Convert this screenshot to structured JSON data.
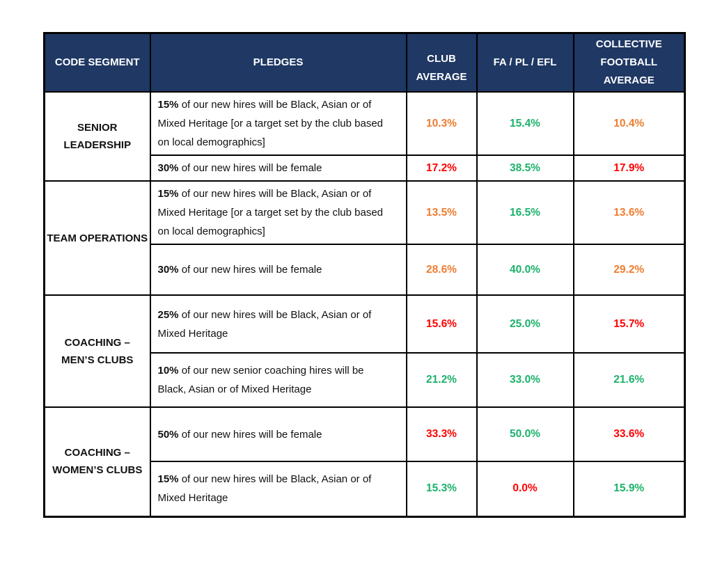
{
  "colors": {
    "header_bg": "#1F3864",
    "header_text": "#FFFFFF",
    "border": "#000000",
    "values": {
      "orange": "#ED7D31",
      "green": "#1CB26B",
      "red": "#FF0000"
    }
  },
  "table": {
    "headers": [
      "CODE SEGMENT",
      "PLEDGES",
      "CLUB AVERAGE",
      "FA / PL / EFL",
      "COLLECTIVE FOOTBALL AVERAGE"
    ],
    "segments": [
      {
        "name_lines": [
          "SENIOR",
          "LEADERSHIP"
        ],
        "rows": [
          {
            "pledge": {
              "target": "15%",
              "text": " of our new hires will be Black, Asian or of Mixed Heritage [or a target set by the club based on local demographics]"
            },
            "values": [
              {
                "value": "10.3%",
                "color": "orange"
              },
              {
                "value": "15.4%",
                "color": "green"
              },
              {
                "value": "10.4%",
                "color": "orange"
              }
            ]
          },
          {
            "pledge": {
              "target": "30%",
              "text": " of our new hires will be female"
            },
            "values": [
              {
                "value": "17.2%",
                "color": "red"
              },
              {
                "value": "38.5%",
                "color": "green"
              },
              {
                "value": "17.9%",
                "color": "red"
              }
            ]
          }
        ]
      },
      {
        "name_lines": [
          "TEAM OPERATIONS"
        ],
        "rows": [
          {
            "pledge": {
              "target": "15%",
              "text": " of our new hires will be Black, Asian or of Mixed Heritage [or a target set by the club based on local demographics]"
            },
            "values": [
              {
                "value": "13.5%",
                "color": "orange"
              },
              {
                "value": "16.5%",
                "color": "green"
              },
              {
                "value": "13.6%",
                "color": "orange"
              }
            ]
          },
          {
            "pledge": {
              "target": "30%",
              "text": " of our new hires will be female"
            },
            "values": [
              {
                "value": "28.6%",
                "color": "orange"
              },
              {
                "value": "40.0%",
                "color": "green"
              },
              {
                "value": "29.2%",
                "color": "orange"
              }
            ]
          }
        ]
      },
      {
        "name_lines": [
          "COACHING –",
          "MEN’S CLUBS"
        ],
        "rows": [
          {
            "pledge": {
              "target": "25%",
              "text": " of our new hires will be Black, Asian or of Mixed Heritage"
            },
            "values": [
              {
                "value": "15.6%",
                "color": "red"
              },
              {
                "value": "25.0%",
                "color": "green"
              },
              {
                "value": "15.7%",
                "color": "red"
              }
            ]
          },
          {
            "pledge": {
              "target": "10%",
              "text": " of our new senior coaching hires will be Black, Asian or of Mixed Heritage"
            },
            "values": [
              {
                "value": "21.2%",
                "color": "green"
              },
              {
                "value": "33.0%",
                "color": "green"
              },
              {
                "value": "21.6%",
                "color": "green"
              }
            ]
          }
        ]
      },
      {
        "name_lines": [
          "COACHING –",
          "WOMEN’S CLUBS"
        ],
        "rows": [
          {
            "pledge": {
              "target": "50%",
              "text": " of our new hires will be female"
            },
            "values": [
              {
                "value": "33.3%",
                "color": "red"
              },
              {
                "value": "50.0%",
                "color": "green"
              },
              {
                "value": "33.6%",
                "color": "red"
              }
            ]
          },
          {
            "pledge": {
              "target": "15%",
              "text": " of our new hires will be Black, Asian or of Mixed Heritage"
            },
            "values": [
              {
                "value": "15.3%",
                "color": "green"
              },
              {
                "value": "0.0%",
                "color": "red"
              },
              {
                "value": "15.9%",
                "color": "green"
              }
            ]
          }
        ]
      }
    ]
  }
}
